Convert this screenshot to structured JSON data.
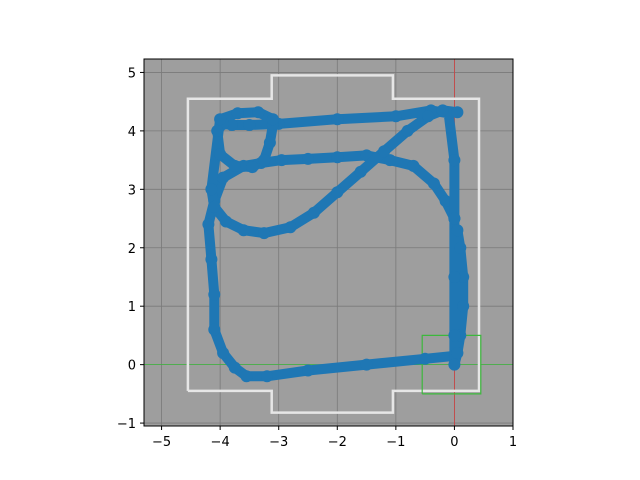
{
  "chart_data": {
    "type": "line",
    "title": "",
    "xlabel": "",
    "ylabel": "",
    "xlim": [
      -5.3,
      1.0
    ],
    "ylim": [
      -1.05,
      5.23
    ],
    "grid": true,
    "x_ticks": [
      -5,
      -4,
      -3,
      -2,
      -1,
      0,
      1
    ],
    "y_ticks": [
      -1,
      0,
      1,
      2,
      3,
      4,
      5
    ],
    "x_tick_labels": [
      "−5",
      "−4",
      "−3",
      "−2",
      "−1",
      "0",
      "1"
    ],
    "y_tick_labels": [
      "−1",
      "0",
      "1",
      "2",
      "3",
      "4",
      "5"
    ],
    "colors": {
      "background": "#9e9e9e",
      "grid": "#7a7a7a",
      "boundary": "#e6e6e6",
      "trajectory": "#1f77b4",
      "box": "#3cb83c",
      "x_axis_line": "#3cb83c",
      "y_axis_line": "#d04040"
    },
    "boundary": {
      "x": [
        -4.55,
        -4.55,
        -3.12,
        -3.12,
        -1.05,
        -1.05,
        0.42,
        0.42,
        -1.05,
        -1.05,
        -3.12,
        -3.12,
        -4.55
      ],
      "y": [
        -0.45,
        4.55,
        4.55,
        4.95,
        4.95,
        4.55,
        4.55,
        -0.45,
        -0.45,
        -0.82,
        -0.82,
        -0.45,
        -0.45
      ]
    },
    "green_box": {
      "x": [
        -0.55,
        0.45,
        0.45,
        -0.55,
        -0.55
      ],
      "y": [
        -0.5,
        -0.5,
        0.5,
        0.5,
        -0.5
      ]
    },
    "series": [
      {
        "x": [
          0.0,
          -0.5,
          -1.5,
          -2.5,
          -3.2,
          -3.55,
          -3.75,
          -3.95,
          -4.1,
          -4.1,
          -4.15,
          -4.2,
          -4.1,
          -3.95,
          -3.6,
          -3.3,
          -2.95,
          -2.5,
          -2.0,
          -1.5,
          -1.1,
          -0.7,
          -0.35,
          -0.15,
          0.0
        ],
        "y": [
          0.15,
          0.1,
          0.0,
          -0.1,
          -0.2,
          -0.2,
          -0.05,
          0.2,
          0.6,
          1.2,
          1.8,
          2.4,
          2.8,
          3.2,
          3.4,
          3.45,
          3.5,
          3.52,
          3.55,
          3.58,
          3.5,
          3.4,
          3.1,
          2.8,
          2.5
        ]
      },
      {
        "x": [
          0.05,
          0.1,
          0.15,
          0.15,
          0.1,
          0.05,
          0.0,
          0.0,
          0.0,
          0.0,
          0.0,
          -0.1,
          -0.4,
          -1.0,
          -2.0,
          -3.0,
          -3.5,
          -3.8,
          -3.95,
          -4.05,
          -4.0,
          -3.75,
          -3.45,
          -3.25,
          -3.15,
          -3.1,
          -3.1,
          -3.35,
          -3.7,
          -4.0,
          -4.15,
          -4.1,
          -3.9,
          -3.6,
          -3.25,
          -2.8,
          -2.4,
          -2.0,
          -1.6,
          -1.2,
          -0.8,
          -0.45,
          -0.2,
          0.05
        ],
        "y": [
          2.3,
          2.0,
          1.5,
          1.0,
          0.5,
          0.2,
          0.0,
          0.5,
          1.5,
          2.5,
          3.5,
          4.3,
          4.35,
          4.25,
          4.2,
          4.12,
          4.1,
          4.1,
          4.12,
          4.0,
          3.6,
          3.4,
          3.38,
          3.5,
          3.8,
          4.1,
          4.2,
          4.32,
          4.3,
          4.2,
          3.0,
          2.7,
          2.45,
          2.3,
          2.25,
          2.35,
          2.6,
          2.95,
          3.3,
          3.65,
          4.0,
          4.25,
          4.35,
          4.32
        ]
      }
    ]
  }
}
